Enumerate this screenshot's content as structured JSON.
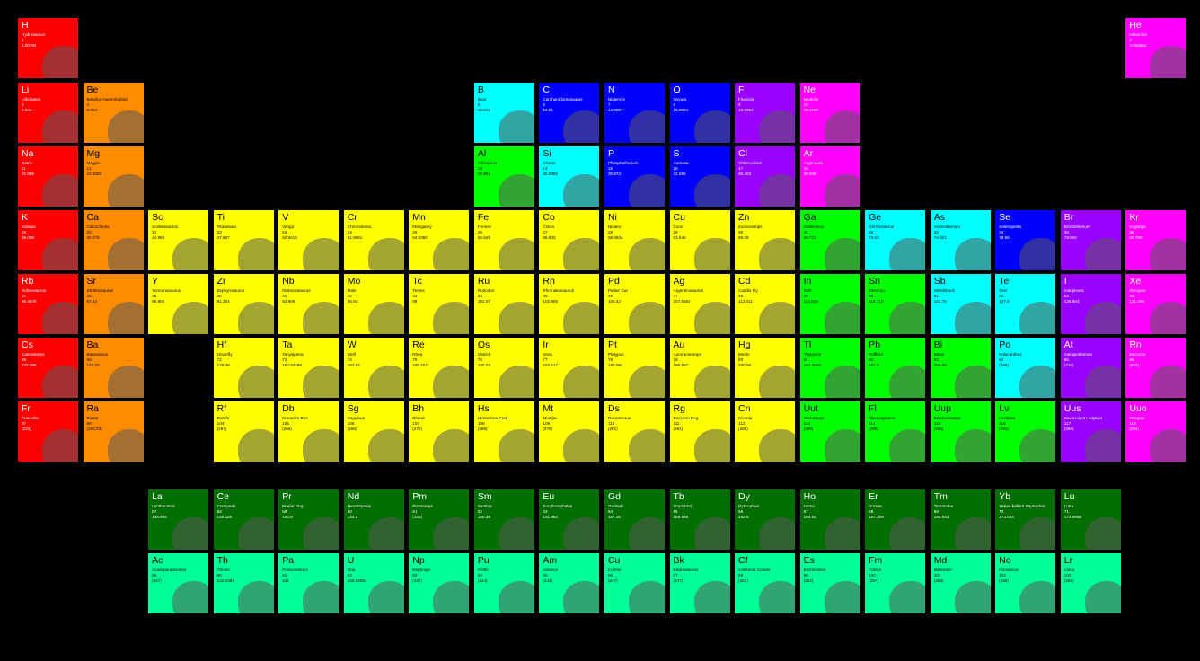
{
  "colors": {
    "alkali": "#ff0000",
    "alkaline": "#ff8c00",
    "transition": "#ffff00",
    "post": "#00ff00",
    "metalloid": "#00ffff",
    "nonmetal": "#0000ff",
    "halogen": "#9900ff",
    "noble": "#ff00ff",
    "lanthanide": "#006f00",
    "actinide": "#00ff99"
  },
  "elements": [
    {
      "num": "1",
      "sym": "H",
      "name": "Hydrosaurus",
      "wt": "1.00794",
      "cat": "alkali"
    },
    {
      "num": "2",
      "sym": "He",
      "name": "Helarctos",
      "wt": "4.002602",
      "cat": "noble"
    },
    {
      "num": "3",
      "sym": "Li",
      "name": "Lithobates",
      "wt": "6.941",
      "cat": "alkali"
    },
    {
      "num": "4",
      "sym": "Be",
      "name": "Beryline Hummingbird",
      "wt": "9.012",
      "cat": "alkaline"
    },
    {
      "num": "5",
      "sym": "B",
      "name": "Boar",
      "wt": "10.811",
      "cat": "metalloid"
    },
    {
      "num": "6",
      "sym": "C",
      "name": "Carcharodontosaurus",
      "wt": "12.01",
      "cat": "nonmetal"
    },
    {
      "num": "7",
      "sym": "N",
      "name": "Ninjemys",
      "wt": "14.0067",
      "cat": "nonmetal"
    },
    {
      "num": "8",
      "sym": "O",
      "name": "Oxyura",
      "wt": "15.9994",
      "cat": "nonmetal"
    },
    {
      "num": "9",
      "sym": "F",
      "name": "Fluvicola",
      "wt": "18.9984",
      "cat": "halogen"
    },
    {
      "num": "10",
      "sym": "Ne",
      "name": "Neofelis",
      "wt": "20.1797",
      "cat": "noble"
    },
    {
      "num": "11",
      "sym": "Na",
      "name": "Natrix",
      "wt": "22.989",
      "cat": "alkali"
    },
    {
      "num": "12",
      "sym": "Mg",
      "name": "Magpie",
      "wt": "24.3050",
      "cat": "alkaline"
    },
    {
      "num": "13",
      "sym": "Al",
      "name": "Allosaurus",
      "wt": "26.981",
      "cat": "post"
    },
    {
      "num": "14",
      "sym": "Si",
      "name": "Silurus",
      "wt": "28.0855",
      "cat": "metalloid"
    },
    {
      "num": "15",
      "sym": "P",
      "name": "Phosphatherium",
      "wt": "30.973",
      "cat": "nonmetal"
    },
    {
      "num": "16",
      "sym": "S",
      "name": "Suricata",
      "wt": "32.065",
      "cat": "nonmetal"
    },
    {
      "num": "17",
      "sym": "Cl",
      "name": "Chlorocebus",
      "wt": "35.453",
      "cat": "halogen"
    },
    {
      "num": "18",
      "sym": "Ar",
      "name": "Argonauta",
      "wt": "39.948",
      "cat": "noble"
    },
    {
      "num": "19",
      "sym": "K",
      "name": "Kakapo",
      "wt": "39.098",
      "cat": "alkali"
    },
    {
      "num": "20",
      "sym": "Ca",
      "name": "Calcochloris",
      "wt": "40.078",
      "cat": "alkaline"
    },
    {
      "num": "21",
      "sym": "Sc",
      "name": "Scelidosaurus",
      "wt": "44.955",
      "cat": "transition"
    },
    {
      "num": "22",
      "sym": "Ti",
      "name": "Titanosaur",
      "wt": "47.867",
      "cat": "transition"
    },
    {
      "num": "23",
      "sym": "V",
      "name": "Vanga",
      "wt": "50.9415",
      "cat": "transition"
    },
    {
      "num": "24",
      "sym": "Cr",
      "name": "Chromobotia",
      "wt": "51.9961",
      "cat": "transition"
    },
    {
      "num": "25",
      "sym": "Mn",
      "name": "Mangabey",
      "wt": "54.9380",
      "cat": "transition"
    },
    {
      "num": "26",
      "sym": "Fe",
      "name": "Fennec",
      "wt": "55.845",
      "cat": "transition"
    },
    {
      "num": "27",
      "sym": "Co",
      "name": "Cobra",
      "wt": "58.933",
      "cat": "transition"
    },
    {
      "num": "28",
      "sym": "Ni",
      "name": "Nicator",
      "wt": "58.6934",
      "cat": "transition"
    },
    {
      "num": "29",
      "sym": "Cu",
      "name": "Cuon",
      "wt": "63.546",
      "cat": "transition"
    },
    {
      "num": "30",
      "sym": "Zn",
      "name": "Zuniceratops",
      "wt": "65.38",
      "cat": "transition"
    },
    {
      "num": "31",
      "sym": "Ga",
      "name": "Gallimimus",
      "wt": "69.723",
      "cat": "post"
    },
    {
      "num": "32",
      "sym": "Ge",
      "name": "Gerrhosaurus",
      "wt": "72.63",
      "cat": "metalloid"
    },
    {
      "num": "33",
      "sym": "As",
      "name": "Arsinoitherium",
      "wt": "74.921",
      "cat": "metalloid"
    },
    {
      "num": "34",
      "sym": "Se",
      "name": "Selenopeltis",
      "wt": "78.96",
      "cat": "nonmetal"
    },
    {
      "num": "35",
      "sym": "Br",
      "name": "Brontotherium",
      "wt": "79.904",
      "cat": "halogen"
    },
    {
      "num": "36",
      "sym": "Kr",
      "name": "Kryptops",
      "wt": "83.798",
      "cat": "noble"
    },
    {
      "num": "37",
      "sym": "Rb",
      "name": "Rubeosaurus",
      "wt": "85.4678",
      "cat": "alkali"
    },
    {
      "num": "38",
      "sym": "Sr",
      "name": "Struthiosaurus",
      "wt": "87.62",
      "cat": "alkaline"
    },
    {
      "num": "39",
      "sym": "Y",
      "name": "Yunnanosaurus",
      "wt": "88.905",
      "cat": "transition"
    },
    {
      "num": "40",
      "sym": "Zr",
      "name": "Zephyrosaurus",
      "wt": "91.224",
      "cat": "transition"
    },
    {
      "num": "41",
      "sym": "Nb",
      "name": "Niobrarasaurus",
      "wt": "92.906",
      "cat": "transition"
    },
    {
      "num": "42",
      "sym": "Mo",
      "name": "Mole",
      "wt": "95.94",
      "cat": "transition"
    },
    {
      "num": "43",
      "sym": "Tc",
      "name": "Tenrec",
      "wt": "98",
      "cat": "transition"
    },
    {
      "num": "44",
      "sym": "Ru",
      "name": "Rutiodon",
      "wt": "101.07",
      "cat": "transition"
    },
    {
      "num": "45",
      "sym": "Rh",
      "name": "Rhomaleosaurus",
      "wt": "102.905",
      "cat": "transition"
    },
    {
      "num": "46",
      "sym": "Pd",
      "name": "Pallas' Cat",
      "wt": "106.42",
      "cat": "transition"
    },
    {
      "num": "47",
      "sym": "Ag",
      "name": "Argentinosaurus",
      "wt": "107.8682",
      "cat": "transition"
    },
    {
      "num": "48",
      "sym": "Cd",
      "name": "Caddis Fly",
      "wt": "112.411",
      "cat": "transition"
    },
    {
      "num": "49",
      "sym": "In",
      "name": "Indri",
      "wt": "114.818",
      "cat": "post"
    },
    {
      "num": "50",
      "sym": "Sn",
      "name": "Tinamou",
      "wt": "118.710",
      "cat": "post"
    },
    {
      "num": "51",
      "sym": "Sb",
      "name": "Stickleback",
      "wt": "121.76",
      "cat": "metalloid"
    },
    {
      "num": "52",
      "sym": "Te",
      "name": "Teal",
      "wt": "127.6",
      "cat": "metalloid"
    },
    {
      "num": "53",
      "sym": "I",
      "name": "Iodopleura",
      "wt": "126.904",
      "cat": "halogen"
    },
    {
      "num": "54",
      "sym": "Xe",
      "name": "Xenopus",
      "wt": "131.294",
      "cat": "noble"
    },
    {
      "num": "55",
      "sym": "Cs",
      "name": "Caenolestes",
      "wt": "132.905",
      "cat": "alkali"
    },
    {
      "num": "56",
      "sym": "Ba",
      "name": "Barosaurus",
      "wt": "137.33",
      "cat": "alkaline"
    },
    {
      "num": "57",
      "sym": "La",
      "name": "Lanthanotus",
      "wt": "138.905",
      "cat": "lanthanide"
    },
    {
      "num": "58",
      "sym": "Ce",
      "name": "Centipede",
      "wt": "140.116",
      "cat": "lanthanide"
    },
    {
      "num": "59",
      "sym": "Pr",
      "name": "Prairie Dog",
      "wt": "140.9",
      "cat": "lanthanide"
    },
    {
      "num": "60",
      "sym": "Nd",
      "name": "Neodrepanis",
      "wt": "144.2",
      "cat": "lanthanide"
    },
    {
      "num": "61",
      "sym": "Pm",
      "name": "Promerops",
      "wt": "(145)",
      "cat": "lanthanide"
    },
    {
      "num": "62",
      "sym": "Sm",
      "name": "Sambar",
      "wt": "150.36",
      "cat": "lanthanide"
    },
    {
      "num": "63",
      "sym": "Eu",
      "name": "Euoplocephalus",
      "wt": "151.964",
      "cat": "lanthanide"
    },
    {
      "num": "64",
      "sym": "Gd",
      "name": "Gadwall",
      "wt": "157.25",
      "cat": "lanthanide"
    },
    {
      "num": "65",
      "sym": "Tb",
      "name": "Tropicbird",
      "wt": "158.925",
      "cat": "lanthanide"
    },
    {
      "num": "66",
      "sym": "Dy",
      "name": "Dyscophus",
      "wt": "162.5",
      "cat": "lanthanide"
    },
    {
      "num": "67",
      "sym": "Ho",
      "name": "Homo",
      "wt": "164.93",
      "cat": "lanthanide"
    },
    {
      "num": "68",
      "sym": "Er",
      "name": "Ermine",
      "wt": "167.259",
      "cat": "lanthanide"
    },
    {
      "num": "69",
      "sym": "Tm",
      "name": "Tamandua",
      "wt": "168.932",
      "cat": "lanthanide"
    },
    {
      "num": "70",
      "sym": "Yb",
      "name": "Yellow-bellied Sapsucker",
      "wt": "173.054",
      "cat": "lanthanide"
    },
    {
      "num": "71",
      "sym": "Lu",
      "name": "Lutra",
      "wt": "174.9668",
      "cat": "lanthanide"
    },
    {
      "num": "72",
      "sym": "Hf",
      "name": "Hoverfly",
      "wt": "178.49",
      "cat": "transition"
    },
    {
      "num": "73",
      "sym": "Ta",
      "name": "Tanysiptera",
      "wt": "180.94788",
      "cat": "transition"
    },
    {
      "num": "74",
      "sym": "W",
      "name": "Wolf",
      "wt": "183.84",
      "cat": "transition"
    },
    {
      "num": "75",
      "sym": "Re",
      "name": "Rhea",
      "wt": "186.207",
      "cat": "transition"
    },
    {
      "num": "76",
      "sym": "Os",
      "name": "Ostrich",
      "wt": "190.23",
      "cat": "transition"
    },
    {
      "num": "77",
      "sym": "Ir",
      "name": "Irena",
      "wt": "192.217",
      "cat": "transition"
    },
    {
      "num": "78",
      "sym": "Pt",
      "name": "Platypus",
      "wt": "195.084",
      "cat": "transition"
    },
    {
      "num": "79",
      "sym": "Au",
      "name": "Auroraceratops",
      "wt": "196.967",
      "cat": "transition"
    },
    {
      "num": "80",
      "sym": "Hg",
      "name": "Merlin",
      "wt": "200.59",
      "cat": "transition"
    },
    {
      "num": "81",
      "sym": "Tl",
      "name": "Thylacine",
      "wt": "204.3833",
      "cat": "post"
    },
    {
      "num": "82",
      "sym": "Pb",
      "name": "Puffbird",
      "wt": "207.2",
      "cat": "post"
    },
    {
      "num": "83",
      "sym": "Bi",
      "name": "Bison",
      "wt": "208.98",
      "cat": "post"
    },
    {
      "num": "84",
      "sym": "Po",
      "name": "Polacanthus",
      "wt": "(209)",
      "cat": "metalloid"
    },
    {
      "num": "85",
      "sym": "At",
      "name": "Astrapotherium",
      "wt": "(210)",
      "cat": "halogen"
    },
    {
      "num": "86",
      "sym": "Rn",
      "name": "Raccoon",
      "wt": "(222)",
      "cat": "noble"
    },
    {
      "num": "87",
      "sym": "Fr",
      "name": "Francolin",
      "wt": "(223)",
      "cat": "alkali"
    },
    {
      "num": "88",
      "sym": "Ra",
      "name": "Rallus",
      "wt": "(226.03)",
      "cat": "alkaline"
    },
    {
      "num": "89",
      "sym": "Ac",
      "name": "Acadoparadoxides",
      "wt": "(227)",
      "cat": "actinide"
    },
    {
      "num": "90",
      "sym": "Th",
      "name": "Thrush",
      "wt": "232.0381",
      "cat": "actinide"
    },
    {
      "num": "91",
      "sym": "Pa",
      "name": "Protoceratops",
      "wt": "231",
      "cat": "actinide"
    },
    {
      "num": "92",
      "sym": "U",
      "name": "Uria",
      "wt": "238.02891",
      "cat": "actinide"
    },
    {
      "num": "93",
      "sym": "Np",
      "name": "Nephrops",
      "wt": "(237)",
      "cat": "actinide"
    },
    {
      "num": "94",
      "sym": "Pu",
      "name": "Puffin",
      "wt": "(244)",
      "cat": "actinide"
    },
    {
      "num": "95",
      "sym": "Am",
      "name": "Amazon",
      "wt": "(243)",
      "cat": "actinide"
    },
    {
      "num": "96",
      "sym": "Cu",
      "name": "Curlew",
      "wt": "(247)",
      "cat": "actinide"
    },
    {
      "num": "97",
      "sym": "Bk",
      "name": "Bikanasaurus",
      "wt": "(247)",
      "cat": "actinide"
    },
    {
      "num": "98",
      "sym": "Cf",
      "name": "California Condor",
      "wt": "(251)",
      "cat": "actinide"
    },
    {
      "num": "99",
      "sym": "Es",
      "name": "Eschrichtius",
      "wt": "(252)",
      "cat": "actinide"
    },
    {
      "num": "100",
      "sym": "Fm",
      "name": "Fulmar",
      "wt": "(257)",
      "cat": "actinide"
    },
    {
      "num": "101",
      "sym": "Md",
      "name": "Mastodon",
      "wt": "(258)",
      "cat": "actinide"
    },
    {
      "num": "102",
      "sym": "No",
      "name": "Nomascus",
      "wt": "(259)",
      "cat": "actinide"
    },
    {
      "num": "103",
      "sym": "Lr",
      "name": "Larus",
      "wt": "(262)",
      "cat": "actinide"
    },
    {
      "num": "104",
      "sym": "Rf",
      "name": "Ratufa",
      "wt": "(267)",
      "cat": "transition"
    },
    {
      "num": "105",
      "sym": "Db",
      "name": "Dumeril's Boa",
      "wt": "(268)",
      "cat": "transition"
    },
    {
      "num": "106",
      "sym": "Sg",
      "name": "Saguinus",
      "wt": "(269)",
      "cat": "transition"
    },
    {
      "num": "107",
      "sym": "Bh",
      "name": "Bharal",
      "wt": "(270)",
      "cat": "transition"
    },
    {
      "num": "108",
      "sym": "Hs",
      "name": "Horseshoe Crab",
      "wt": "(269)",
      "cat": "transition"
    },
    {
      "num": "109",
      "sym": "Mt",
      "name": "Muntjac",
      "wt": "(278)",
      "cat": "transition"
    },
    {
      "num": "110",
      "sym": "Ds",
      "name": "Dacentrurus",
      "wt": "(281)",
      "cat": "transition"
    },
    {
      "num": "111",
      "sym": "Rg",
      "name": "Raccoon Dog",
      "wt": "(281)",
      "cat": "transition"
    },
    {
      "num": "112",
      "sym": "Cn",
      "name": "Ciconia",
      "wt": "(285)",
      "cat": "transition"
    },
    {
      "num": "113",
      "sym": "Uut",
      "name": "Triceratops",
      "wt": "(286)",
      "cat": "post"
    },
    {
      "num": "114",
      "sym": "Fl",
      "name": "Flexicalymene",
      "wt": "(289)",
      "cat": "post"
    },
    {
      "num": "115",
      "sym": "Uup",
      "name": "Pentaceratops",
      "wt": "(288)",
      "cat": "post"
    },
    {
      "num": "116",
      "sym": "Lv",
      "name": "Lovebird",
      "wt": "(293)",
      "cat": "post"
    },
    {
      "num": "117",
      "sym": "Uus",
      "name": "Seven-spot Ladybird",
      "wt": "(294)",
      "cat": "halogen"
    },
    {
      "num": "118",
      "sym": "Uuo",
      "name": "Octopus",
      "wt": "(294)",
      "cat": "noble"
    }
  ]
}
